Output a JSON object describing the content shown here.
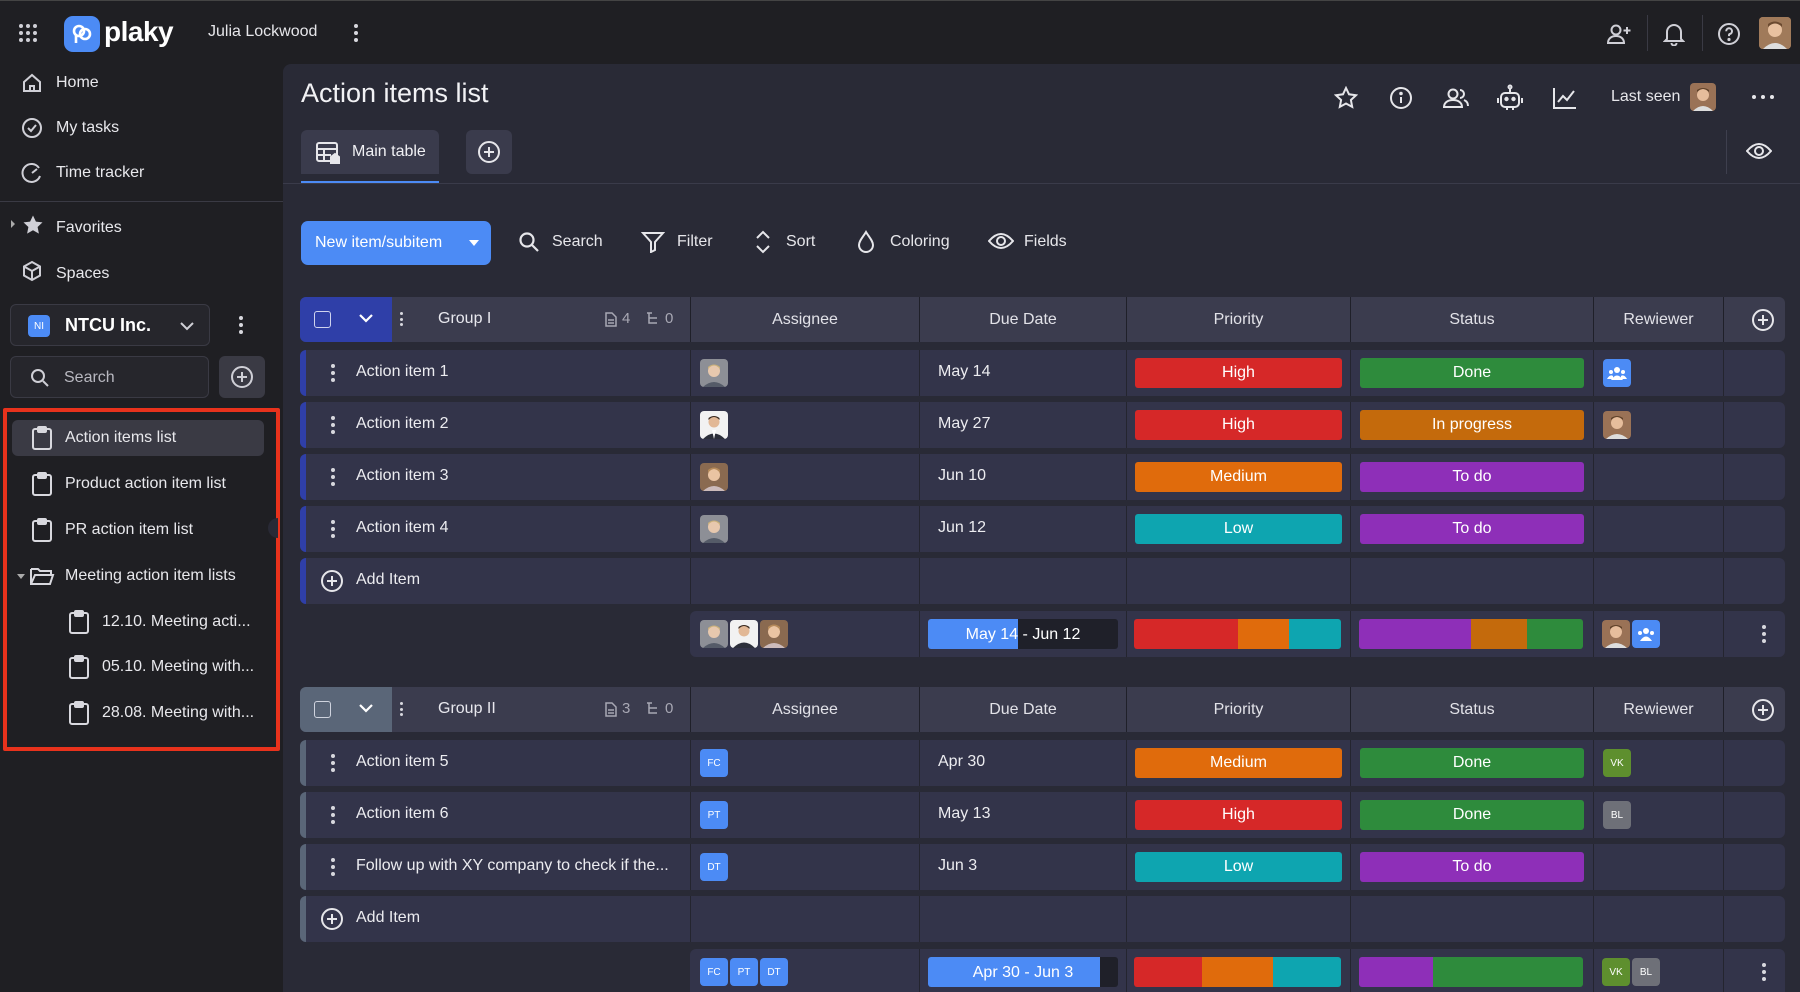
{
  "app": {
    "name": "plaky",
    "user": "Julia Lockwood"
  },
  "sidebar": {
    "nav": [
      {
        "label": "Home"
      },
      {
        "label": "My tasks"
      },
      {
        "label": "Time tracker"
      }
    ],
    "favorites": "Favorites",
    "spaces": "Spaces",
    "workspace": {
      "badge": "NI",
      "name": "NTCU Inc."
    },
    "search_placeholder": "Search",
    "boards": [
      {
        "label": "Action items list"
      },
      {
        "label": "Product action item list"
      },
      {
        "label": "PR action item list"
      },
      {
        "label": "Meeting action item lists"
      },
      {
        "label": "12.10. Meeting acti..."
      },
      {
        "label": "05.10. Meeting with..."
      },
      {
        "label": "28.08. Meeting with..."
      }
    ],
    "highlight_color": "#e8321c"
  },
  "board": {
    "title": "Action items list",
    "last_seen": "Last seen",
    "tab_main": "Main table",
    "toolbar": {
      "new_item": "New item/subitem",
      "search": "Search",
      "filter": "Filter",
      "sort": "Sort",
      "coloring": "Coloring",
      "fields": "Fields"
    }
  },
  "columns": {
    "assignee": "Assignee",
    "due": "Due Date",
    "priority": "Priority",
    "status": "Status",
    "reviewer": "Rewiewer"
  },
  "colors": {
    "accent": "#4c8bf5",
    "high": "#d62828",
    "medium": "#e06b0c",
    "low": "#0ea5b0",
    "done": "#2e8b3c",
    "inprogress": "#c46a0c",
    "todo": "#8e2fb8",
    "group1": "#2f3fa8",
    "group2": "#5a6678"
  },
  "groups": [
    {
      "name": "Group I",
      "items_count": "4",
      "sub_count": "0",
      "rows": [
        {
          "name": "Action item 1",
          "due": "May 14",
          "priority": "High",
          "status": "Done"
        },
        {
          "name": "Action item 2",
          "due": "May 27",
          "priority": "High",
          "status": "In progress"
        },
        {
          "name": "Action item 3",
          "due": "Jun 10",
          "priority": "Medium",
          "status": "To do"
        },
        {
          "name": "Action item 4",
          "due": "Jun 12",
          "priority": "Low",
          "status": "To do"
        }
      ],
      "add_item": "Add Item",
      "summary_date": "May 14 - Jun 12"
    },
    {
      "name": "Group II",
      "items_count": "3",
      "sub_count": "0",
      "rows": [
        {
          "name": "Action item 5",
          "due": "Apr 30",
          "priority": "Medium",
          "status": "Done",
          "assignee": "FC",
          "reviewer": "VK"
        },
        {
          "name": "Action item 6",
          "due": "May 13",
          "priority": "High",
          "status": "Done",
          "assignee": "PT",
          "reviewer": "BL"
        },
        {
          "name": "Follow up with XY company to check if the...",
          "due": "Jun 3",
          "priority": "Low",
          "status": "To do",
          "assignee": "DT",
          "reviewer": ""
        }
      ],
      "add_item": "Add Item",
      "summary_date": "Apr 30 - Jun 3",
      "summary_assignees": [
        "FC",
        "PT",
        "DT"
      ],
      "summary_reviewers": [
        "VK",
        "BL"
      ]
    }
  ]
}
